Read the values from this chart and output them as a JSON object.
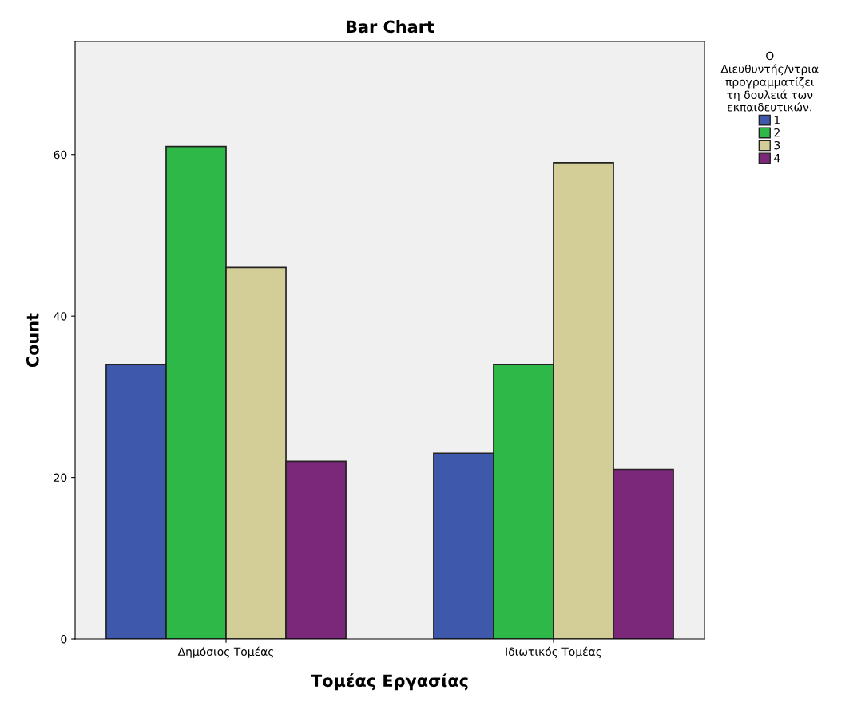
{
  "chart_data": {
    "type": "bar",
    "title": "Bar Chart",
    "xlabel": "Τομέας Εργασίας",
    "ylabel": "Count",
    "legend_title": "Ο\nΔιευθυντής/ντρια\nπρογραμματίζει\nτη δουλειά των\nεκπαιδευτικών.",
    "categories": [
      "Δημόσιος Τομέας",
      "Ιδιωτικός Τομέας"
    ],
    "series": [
      {
        "name": "1",
        "color": "#3e58ac",
        "values": [
          34,
          23
        ]
      },
      {
        "name": "2",
        "color": "#2eb848",
        "values": [
          61,
          34
        ]
      },
      {
        "name": "3",
        "color": "#d3ce97",
        "values": [
          46,
          59
        ]
      },
      {
        "name": "4",
        "color": "#7b287a",
        "values": [
          22,
          21
        ]
      }
    ],
    "ylim": [
      0,
      74
    ],
    "yticks": [
      0,
      20,
      40,
      60
    ],
    "grid": false,
    "legend": "right"
  }
}
